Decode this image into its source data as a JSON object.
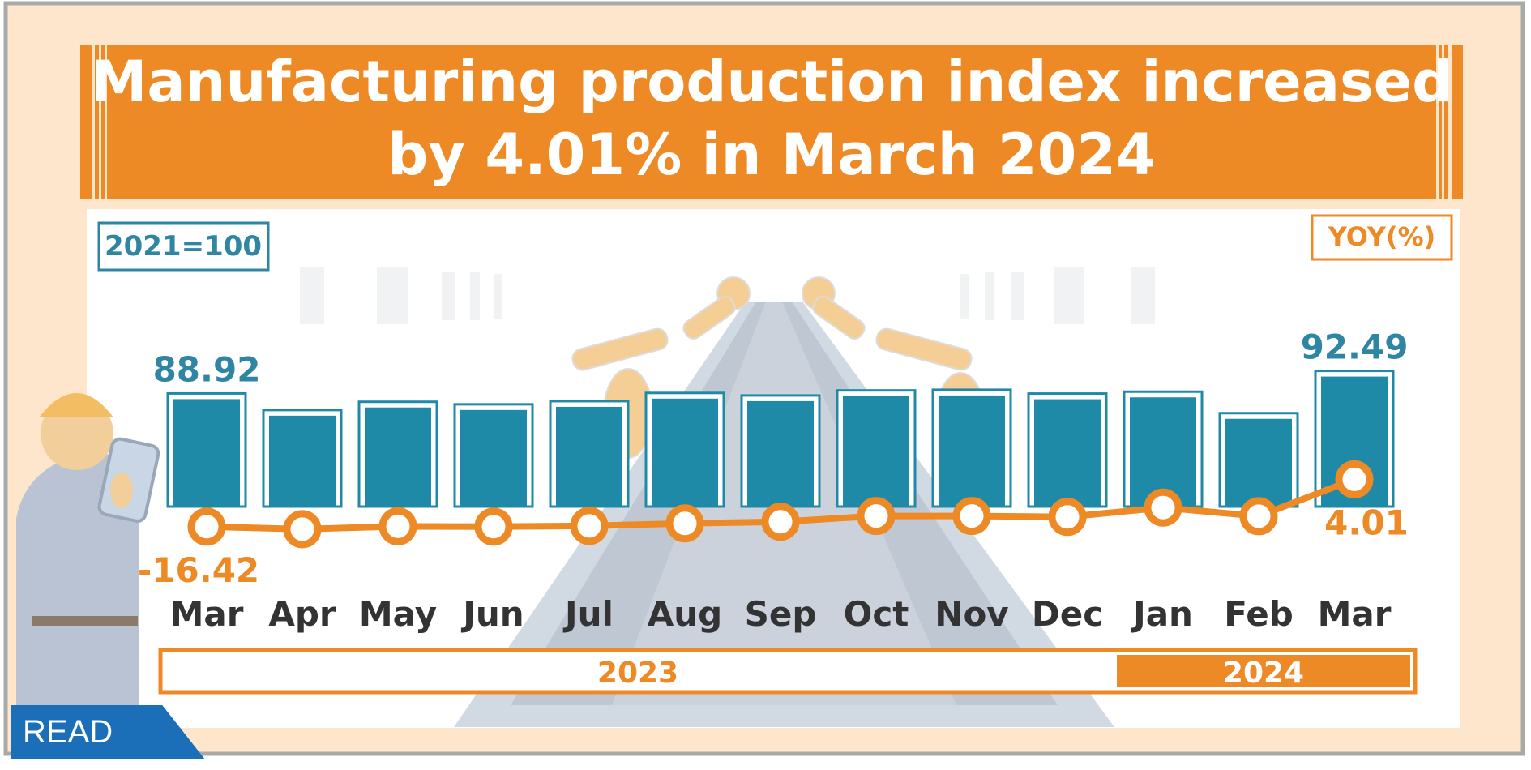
{
  "title_lines": [
    "Manufacturing production index increased",
    "by 4.01% in  March  2024"
  ],
  "base_label": "2021=100",
  "yoy_label": "YOY(%)",
  "read_button": "READ",
  "colors": {
    "orange": "#ee8a25",
    "bar": "#1f8aa8",
    "base_text": "#2f86a3",
    "background": "#fde6cc",
    "panel": "#ffffff"
  },
  "chart_data": {
    "type": "bar",
    "categories": [
      "Mar",
      "Apr",
      "May",
      "Jun",
      "Jul",
      "Aug",
      "Sep",
      "Oct",
      "Nov",
      "Dec",
      "Jan",
      "Feb",
      "Mar"
    ],
    "years": [
      {
        "label": "2023",
        "span": [
          "Mar",
          "Dec"
        ]
      },
      {
        "label": "2024",
        "span": [
          "Jan",
          "Mar"
        ]
      }
    ],
    "series": [
      {
        "type": "bar",
        "values": [
          88.92,
          86.3,
          87.6,
          87.2,
          87.7,
          89.0,
          88.6,
          89.4,
          89.5,
          88.9,
          89.2,
          85.8,
          92.49
        ],
        "data_labels": [
          {
            "index": 0,
            "text": "88.92"
          },
          {
            "index": 12,
            "text": "92.49"
          }
        ]
      },
      {
        "type": "line",
        "values": [
          -16.42,
          -17.5,
          -16.3,
          -16.4,
          -16.1,
          -15.0,
          -14.3,
          -11.8,
          -11.8,
          -12.2,
          -8.2,
          -11.9,
          4.01
        ],
        "data_labels": [
          {
            "index": 0,
            "text": "-16.42"
          },
          {
            "index": 12,
            "text": "4.01"
          }
        ]
      }
    ]
  }
}
